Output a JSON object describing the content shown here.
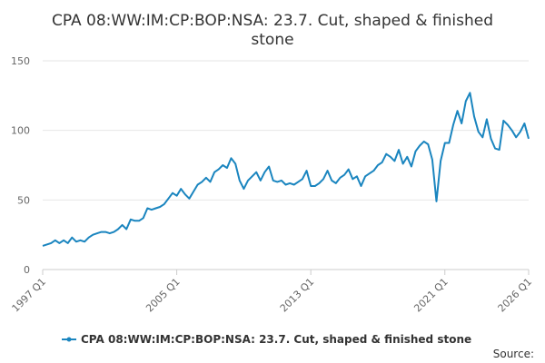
{
  "chart_data": {
    "type": "line",
    "title": "CPA 08:WW:IM:CP:BOP:NSA: 23.7. Cut, shaped & finished stone",
    "categories": [
      "1997 Q1",
      null,
      null,
      null,
      null,
      null,
      null,
      null,
      null,
      null,
      null,
      null,
      null,
      null,
      null,
      null,
      null,
      null,
      null,
      null,
      null,
      null,
      null,
      null,
      null,
      null,
      null,
      null,
      null,
      null,
      null,
      null,
      "2005 Q1",
      null,
      null,
      null,
      null,
      null,
      null,
      null,
      null,
      null,
      null,
      null,
      null,
      null,
      null,
      null,
      null,
      null,
      null,
      null,
      null,
      null,
      null,
      null,
      null,
      null,
      null,
      null,
      null,
      null,
      null,
      null,
      "2013 Q1",
      null,
      null,
      null,
      null,
      null,
      null,
      null,
      null,
      null,
      null,
      null,
      null,
      null,
      null,
      null,
      null,
      null,
      null,
      null,
      null,
      null,
      null,
      null,
      null,
      null,
      null,
      null,
      null,
      null,
      null,
      null,
      "2021 Q1",
      null,
      null,
      null,
      null,
      null,
      null,
      null,
      null,
      null,
      null,
      null,
      null,
      null,
      null,
      null,
      null,
      null,
      null,
      null,
      "2026 Q1"
    ],
    "series": [
      {
        "name": "CPA 08:WW:IM:CP:BOP:NSA: 23.7. Cut, shaped & finished stone",
        "color": "#1a85bf",
        "values": [
          17,
          18,
          19,
          21,
          19,
          21,
          19,
          23,
          20,
          21,
          20,
          23,
          25,
          26,
          27,
          27,
          26,
          27,
          29,
          32,
          29,
          36,
          35,
          35,
          37,
          44,
          43,
          44,
          45,
          47,
          51,
          55,
          53,
          58,
          54,
          51,
          56,
          61,
          63,
          66,
          63,
          70,
          72,
          75,
          73,
          80,
          76,
          64,
          58,
          64,
          67,
          70,
          64,
          70,
          74,
          64,
          63,
          64,
          61,
          62,
          61,
          63,
          65,
          71,
          60,
          60,
          62,
          65,
          71,
          64,
          62,
          66,
          68,
          72,
          65,
          67,
          60,
          67,
          69,
          71,
          75,
          77,
          83,
          81,
          78,
          86,
          76,
          81,
          74,
          85,
          89,
          92,
          90,
          79,
          49,
          78,
          91,
          91,
          104,
          114,
          105,
          121,
          127,
          110,
          99,
          95,
          108,
          94,
          87,
          86,
          107,
          104,
          100,
          95,
          99,
          105,
          94
        ]
      }
    ],
    "ylim": [
      0,
      150
    ],
    "yticks": [
      0,
      50,
      100,
      150
    ],
    "grid": true,
    "source": "Source:"
  }
}
